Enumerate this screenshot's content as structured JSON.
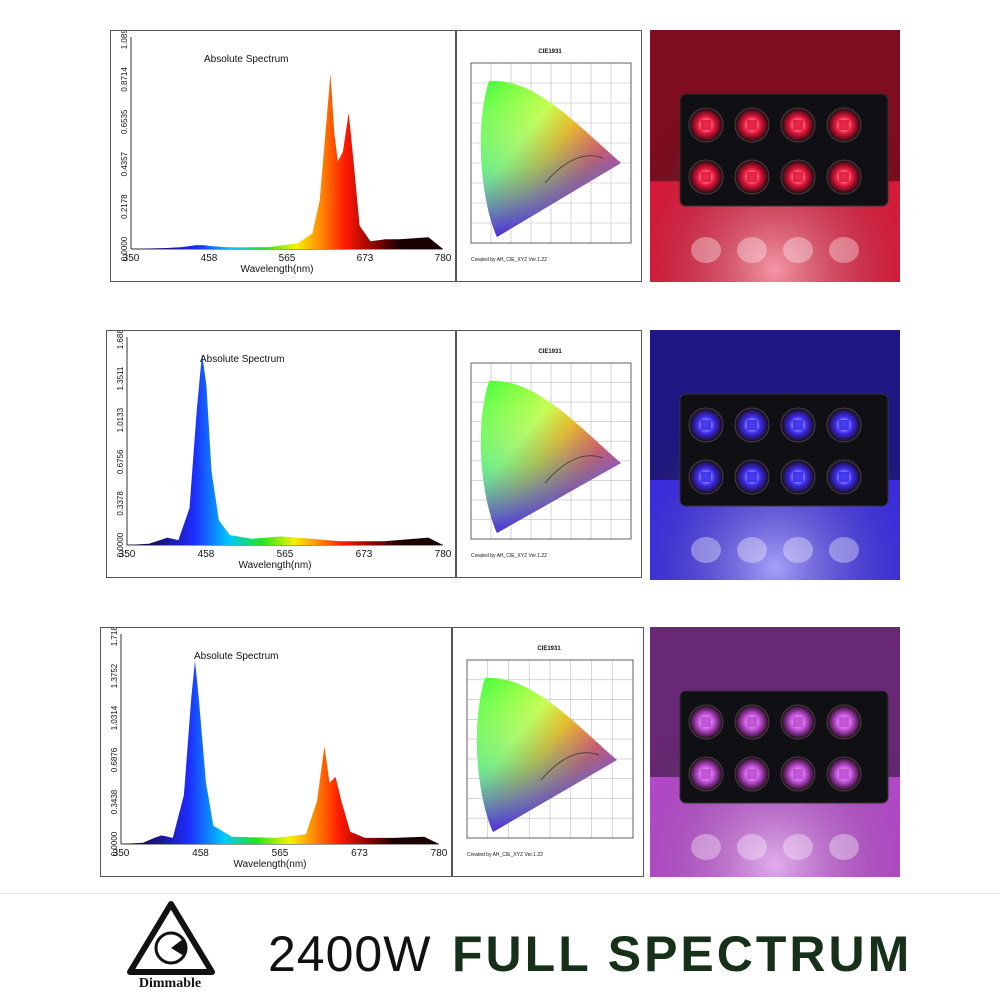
{
  "charts": [
    {
      "title": "Absolute Spectrum",
      "xlabel": "Wavelength(nm)",
      "x_ticks": [
        "350",
        "458",
        "565",
        "673",
        "780"
      ],
      "y_ticks": [
        "0.0000",
        "0.2178",
        "0.4357",
        "0.6535",
        "0.8714",
        "1.0892"
      ],
      "cie_title": "CIE1931",
      "cie_credit": "Created by AH_CIE_XYZ Ver.1.22",
      "photo_color": "#e8163a"
    },
    {
      "title": "Absolute Spectrum",
      "xlabel": "Wavelength(nm)",
      "x_ticks": [
        "350",
        "458",
        "565",
        "673",
        "780"
      ],
      "y_ticks": [
        "0.0000",
        "0.3378",
        "0.6756",
        "1.0133",
        "1.3511",
        "1.6889"
      ],
      "cie_title": "CIE1931",
      "cie_credit": "Created by AH_CIE_XYZ Ver.1.22",
      "photo_color": "#3a2cf0"
    },
    {
      "title": "Absolute Spectrum",
      "xlabel": "Wavelength(nm)",
      "x_ticks": [
        "350",
        "458",
        "565",
        "673",
        "780"
      ],
      "y_ticks": [
        "0.0000",
        "0.3438",
        "0.6876",
        "1.0314",
        "1.3752",
        "1.7189"
      ],
      "cie_title": "CIE1931",
      "cie_credit": "Created by AH_CIE_XYZ Ver.1.22",
      "photo_color": "#c04ad8"
    }
  ],
  "chart_data": [
    {
      "type": "area",
      "title": "Absolute Spectrum",
      "xlabel": "Wavelength(nm)",
      "ylabel": "",
      "xlim": [
        350,
        780
      ],
      "ylim": [
        0,
        1.0892
      ],
      "x": [
        350,
        400,
        420,
        440,
        450,
        460,
        480,
        500,
        540,
        580,
        600,
        610,
        618,
        625,
        630,
        635,
        642,
        650,
        658,
        665,
        680,
        700,
        720,
        760,
        780
      ],
      "y": [
        0.0,
        0.005,
        0.01,
        0.02,
        0.02,
        0.015,
        0.01,
        0.008,
        0.01,
        0.03,
        0.08,
        0.25,
        0.6,
        0.9,
        0.6,
        0.45,
        0.5,
        0.7,
        0.4,
        0.12,
        0.04,
        0.05,
        0.05,
        0.06,
        0.0
      ]
    },
    {
      "type": "area",
      "title": "Absolute Spectrum",
      "xlabel": "Wavelength(nm)",
      "ylabel": "",
      "xlim": [
        350,
        780
      ],
      "ylim": [
        0,
        1.6889
      ],
      "x": [
        350,
        380,
        395,
        405,
        420,
        435,
        445,
        452,
        458,
        465,
        475,
        490,
        520,
        560,
        600,
        640,
        700,
        760,
        780
      ],
      "y": [
        0.0,
        0.01,
        0.04,
        0.06,
        0.04,
        0.3,
        1.1,
        1.55,
        1.3,
        0.6,
        0.2,
        0.08,
        0.05,
        0.07,
        0.05,
        0.03,
        0.03,
        0.06,
        0.0
      ]
    },
    {
      "type": "area",
      "title": "Absolute Spectrum",
      "xlabel": "Wavelength(nm)",
      "ylabel": "",
      "xlim": [
        350,
        780
      ],
      "ylim": [
        0,
        1.7189
      ],
      "x": [
        350,
        380,
        395,
        405,
        420,
        435,
        445,
        450,
        455,
        465,
        475,
        500,
        560,
        600,
        615,
        625,
        632,
        640,
        648,
        660,
        680,
        720,
        760,
        780
      ],
      "y": [
        0.0,
        0.01,
        0.05,
        0.07,
        0.05,
        0.4,
        1.2,
        1.5,
        1.2,
        0.5,
        0.15,
        0.06,
        0.05,
        0.08,
        0.35,
        0.8,
        0.5,
        0.55,
        0.35,
        0.1,
        0.05,
        0.05,
        0.06,
        0.0
      ]
    }
  ],
  "footer": {
    "dimmable_label": "Dimmable",
    "wattage": "2400W",
    "spectrum_text": "FULL SPECTRUM"
  }
}
